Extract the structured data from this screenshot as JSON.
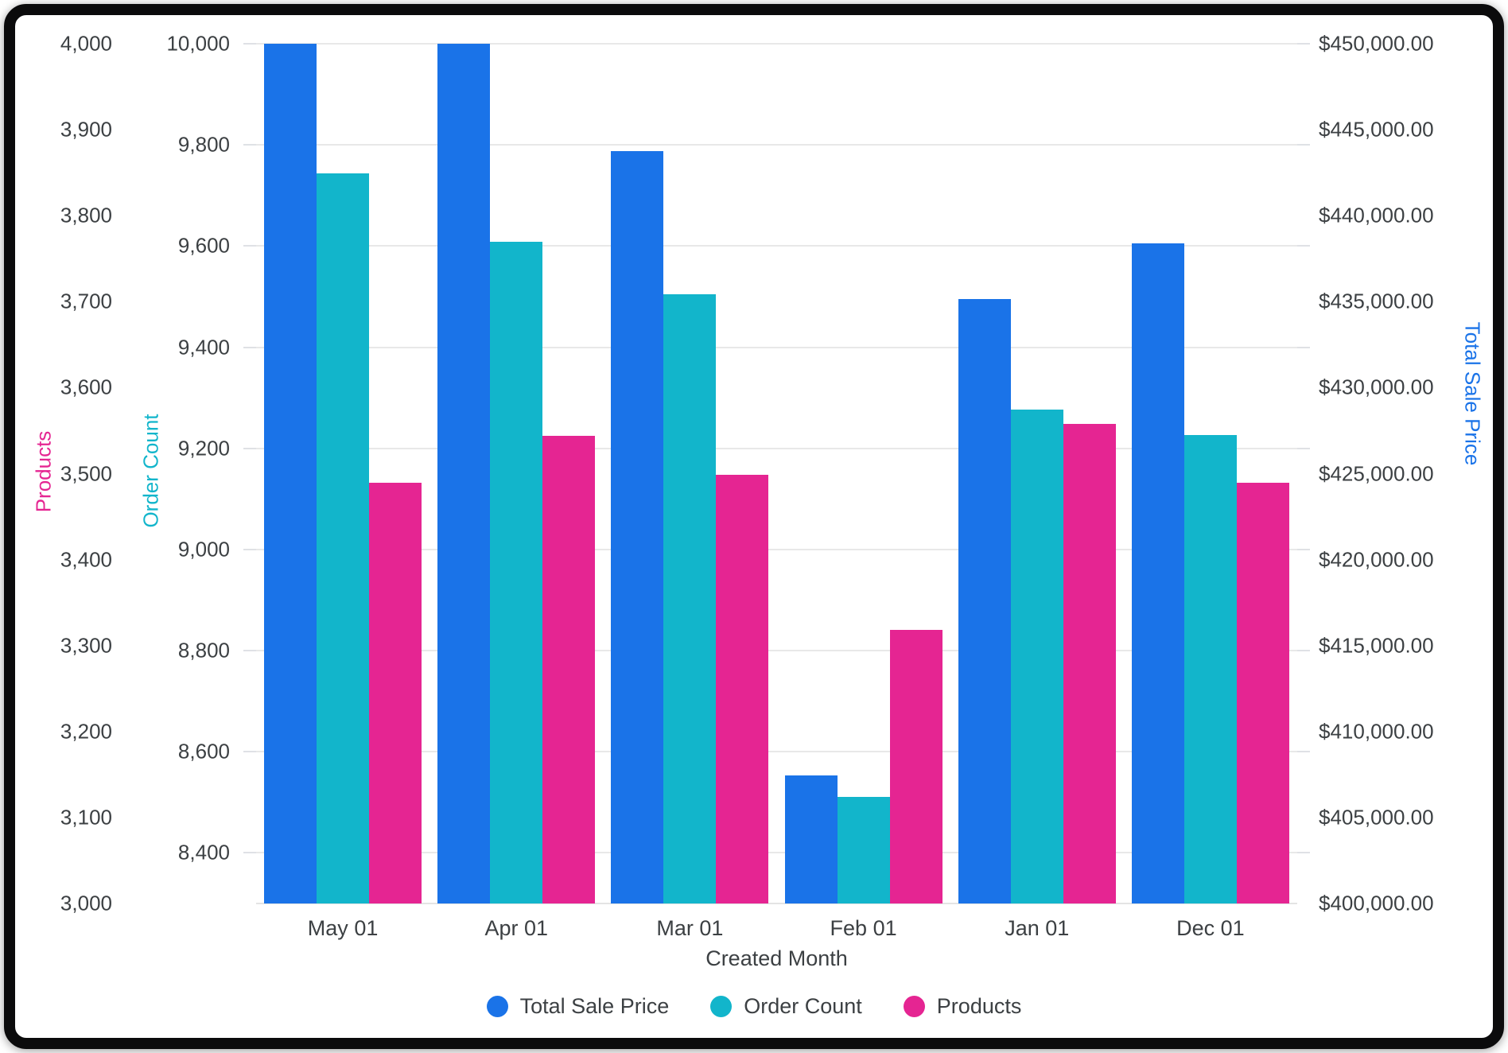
{
  "chart_data": {
    "type": "bar",
    "title": "",
    "categories": [
      "May 01",
      "Apr 01",
      "Mar 01",
      "Feb 01",
      "Jan 01",
      "Dec 01"
    ],
    "x_axis_title": "Created Month",
    "series": [
      {
        "name": "Total Sale Price",
        "axis": "price",
        "color": "#1A73E8",
        "values": [
          450000,
          450000,
          443750,
          407450,
          435150,
          438400
        ]
      },
      {
        "name": "Order Count",
        "axis": "order",
        "color": "#12B5CB",
        "values": [
          9743,
          9608,
          9504,
          8510,
          9277,
          9227
        ]
      },
      {
        "name": "Products",
        "axis": "products",
        "color": "#E52592",
        "values": [
          3489,
          3544,
          3499,
          3318,
          3558,
          3489
        ]
      }
    ],
    "axes": {
      "products": {
        "title": "Products",
        "side": "left-outer",
        "min": 3000,
        "max": 4000,
        "tick_start": 3000,
        "tick_step": 100,
        "format": "number",
        "color": "#E52592",
        "gridlines": false
      },
      "order": {
        "title": "Order Count",
        "side": "left-inner",
        "min": 8300,
        "max": 10000,
        "tick_start": 8400,
        "tick_step": 200,
        "format": "number",
        "color": "#12B5CB",
        "gridlines": true
      },
      "price": {
        "title": "Total Sale Price",
        "side": "right",
        "min": 400000,
        "max": 450000,
        "tick_start": 400000,
        "tick_step": 5000,
        "format": "currency",
        "color": "#1A73E8",
        "gridlines": false
      }
    },
    "legend_position": "bottom",
    "grid_on": true,
    "background": "#ffffff",
    "text_color": "#3c4043",
    "gridline_color": "#e8e8e8"
  }
}
